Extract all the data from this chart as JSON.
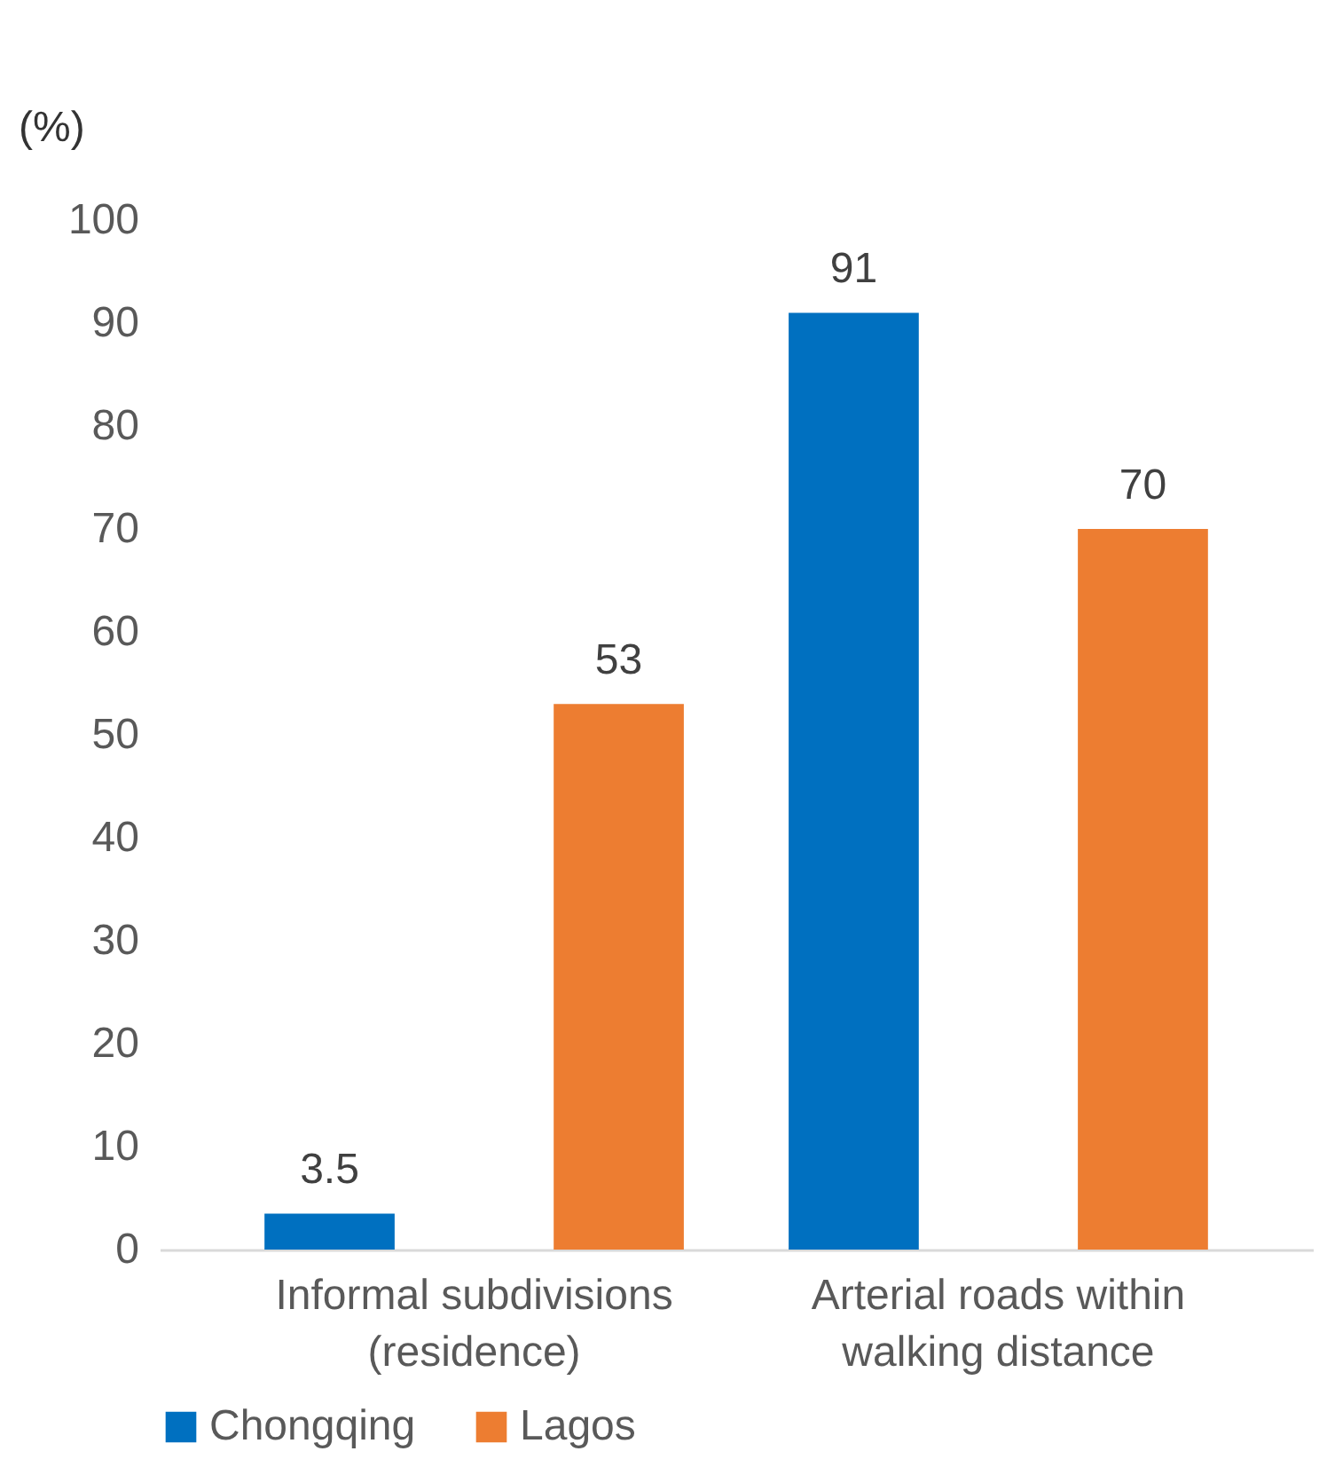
{
  "chart_data": {
    "type": "bar",
    "ylabel": "(%)",
    "categories": [
      "Informal subdivisions (residence)",
      "Arterial roads within walking distance"
    ],
    "series": [
      {
        "name": "Chongqing",
        "color": "#0070c0",
        "values": [
          3.5,
          91
        ]
      },
      {
        "name": "Lagos",
        "color": "#ed7d31",
        "values": [
          53,
          70
        ]
      }
    ],
    "ylim": [
      0,
      100
    ],
    "yticks": [
      0,
      10,
      20,
      30,
      40,
      50,
      60,
      70,
      80,
      90,
      100
    ],
    "grid": false,
    "legend": "bottom",
    "data_labels": true
  }
}
